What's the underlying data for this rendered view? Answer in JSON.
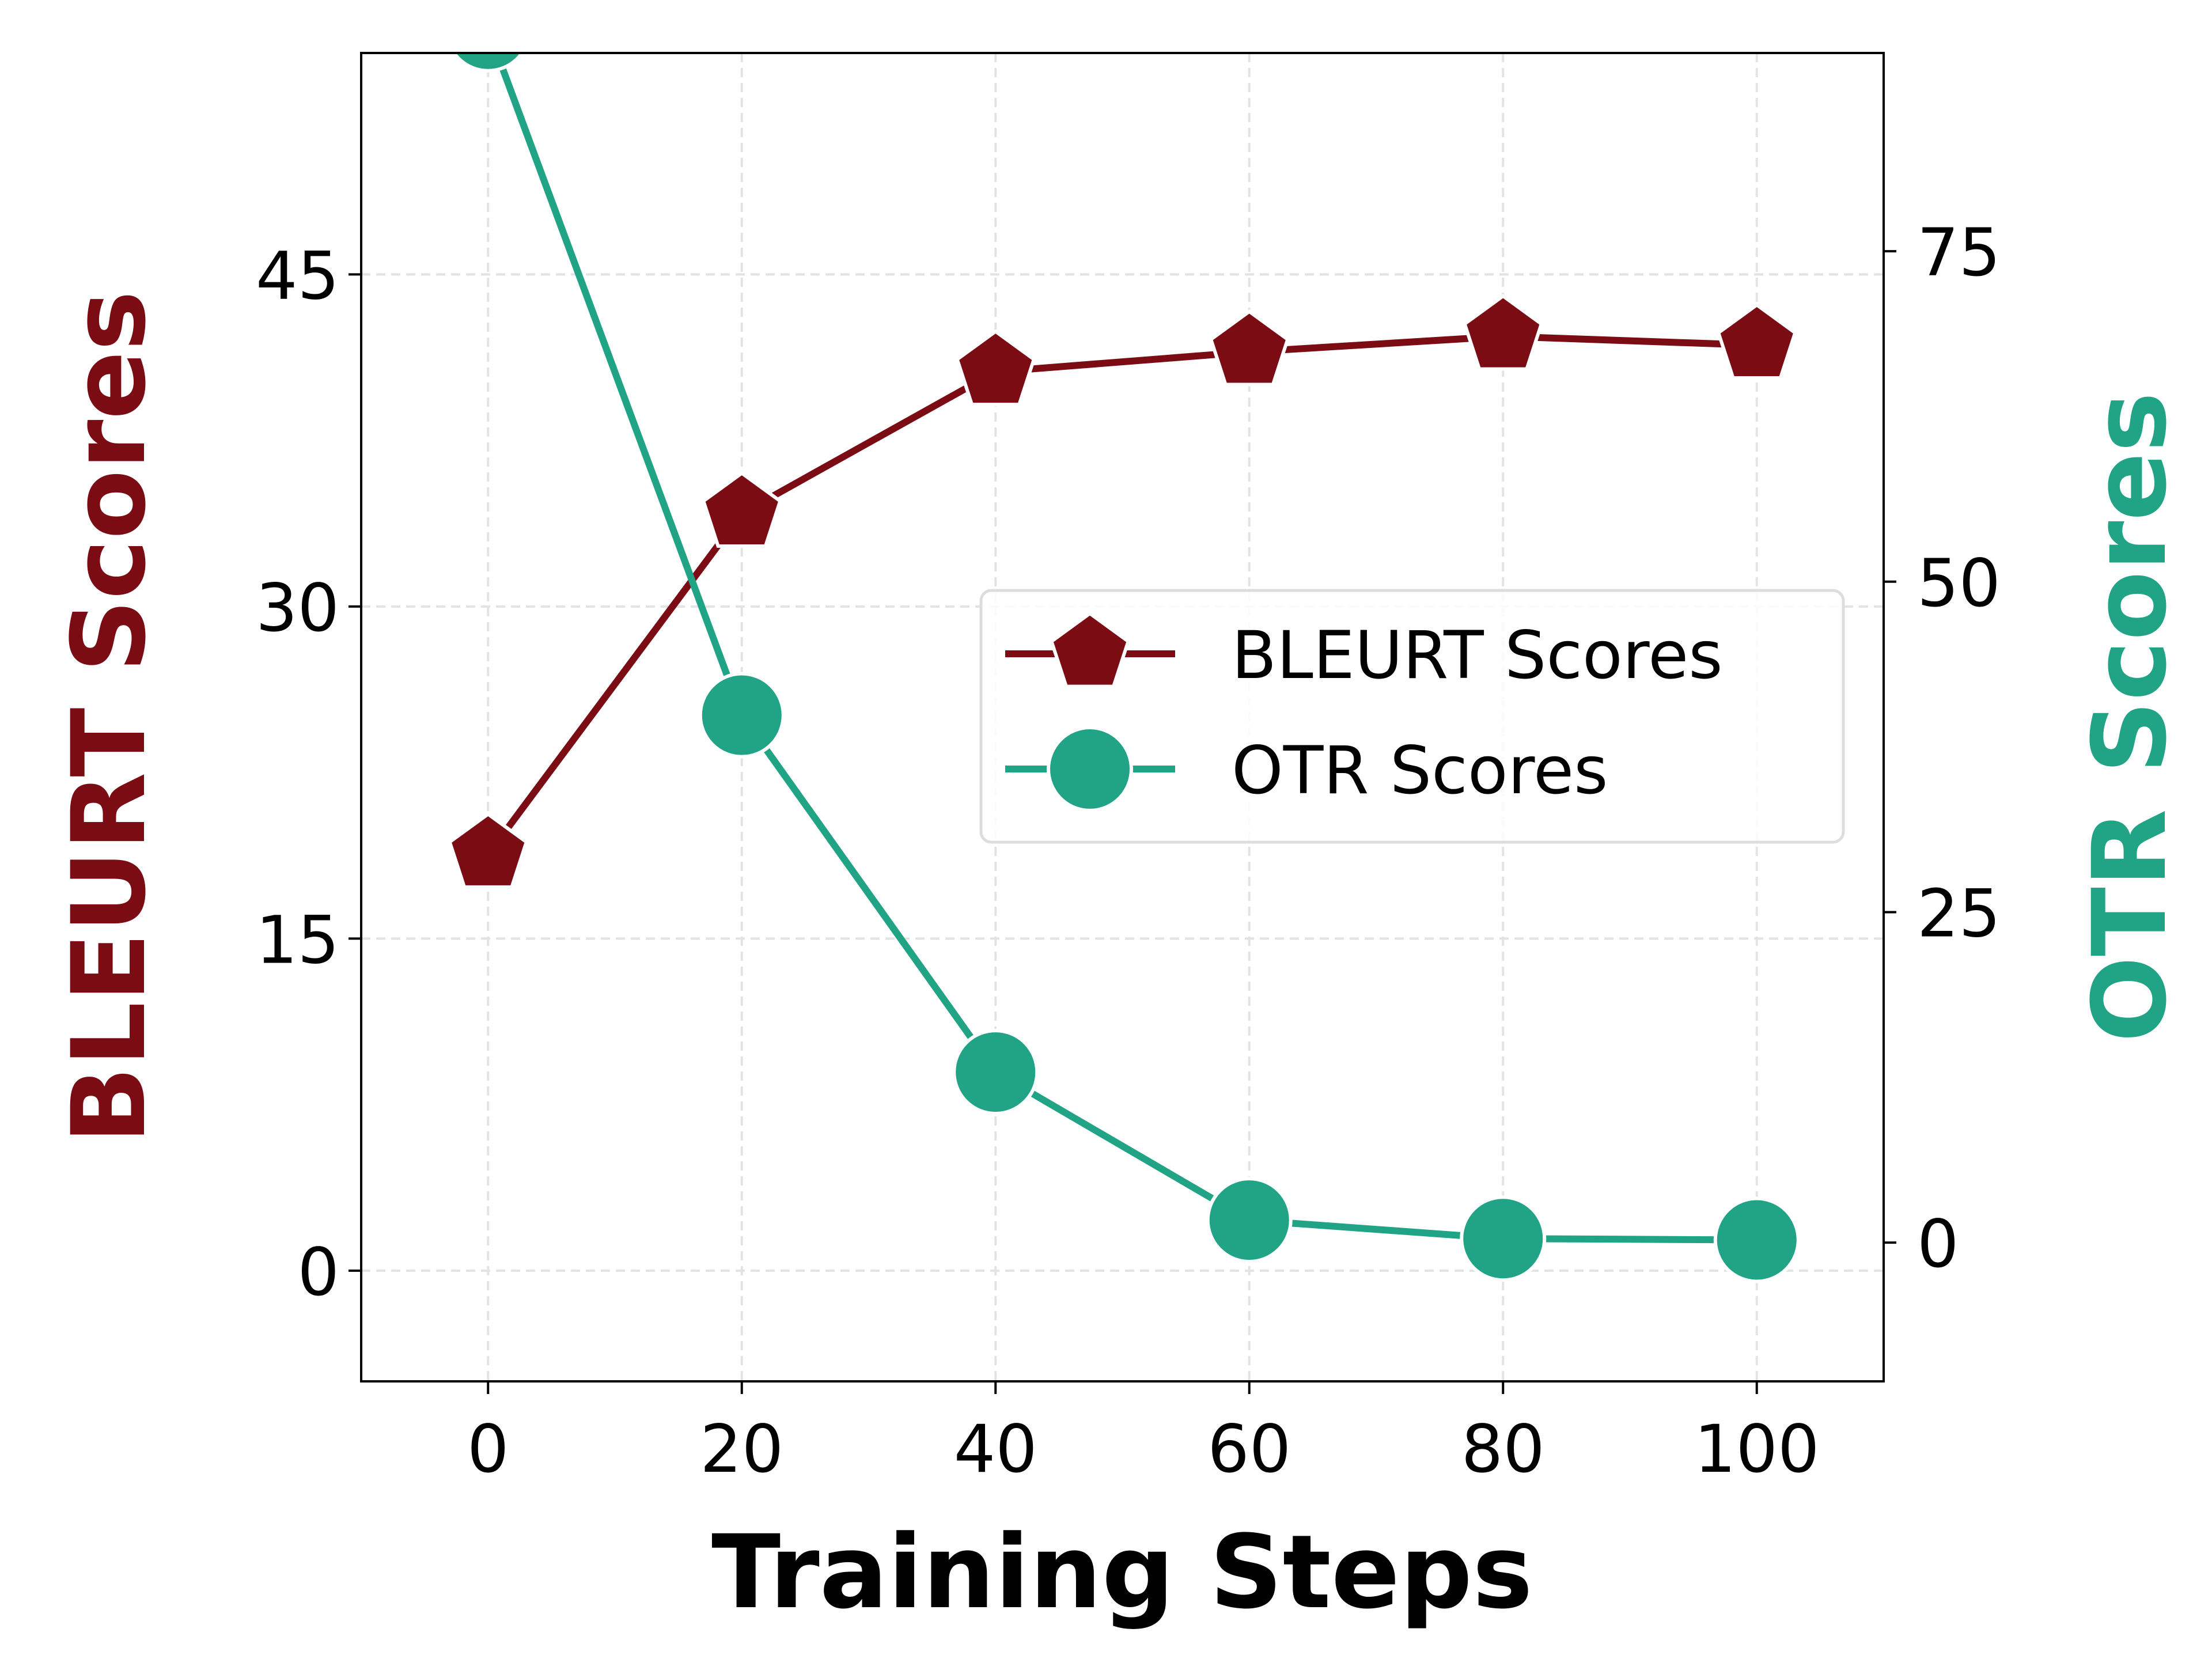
{
  "chart_data": {
    "type": "line",
    "xlabel": "Training Steps",
    "ylabel_left": "BLEURT Scores",
    "ylabel_right": "OTR Scores",
    "x": [
      0,
      20,
      40,
      60,
      80,
      100
    ],
    "xlim": [
      -10,
      110
    ],
    "ylim_left": [
      -5,
      55
    ],
    "ylim_right": [
      -10.5,
      90
    ],
    "xticks": [
      "0",
      "20",
      "40",
      "60",
      "80",
      "100"
    ],
    "yticks_left": [
      "0",
      "15",
      "30",
      "45"
    ],
    "yticks_right": [
      "0",
      "25",
      "50",
      "75"
    ],
    "grid": true,
    "grid_style": "dashed",
    "legend_position": "center-right",
    "series": [
      {
        "name": "BLEURT Scores",
        "axis": "left",
        "marker": "pentagon",
        "color": "#7b0c14",
        "values": [
          18.8,
          34.2,
          40.6,
          41.5,
          42.2,
          41.8
        ]
      },
      {
        "name": "OTR Scores",
        "axis": "right",
        "marker": "circle",
        "color": "#21a386",
        "values": [
          91.8,
          39.9,
          12.9,
          1.7,
          0.3,
          0.2
        ]
      }
    ]
  }
}
